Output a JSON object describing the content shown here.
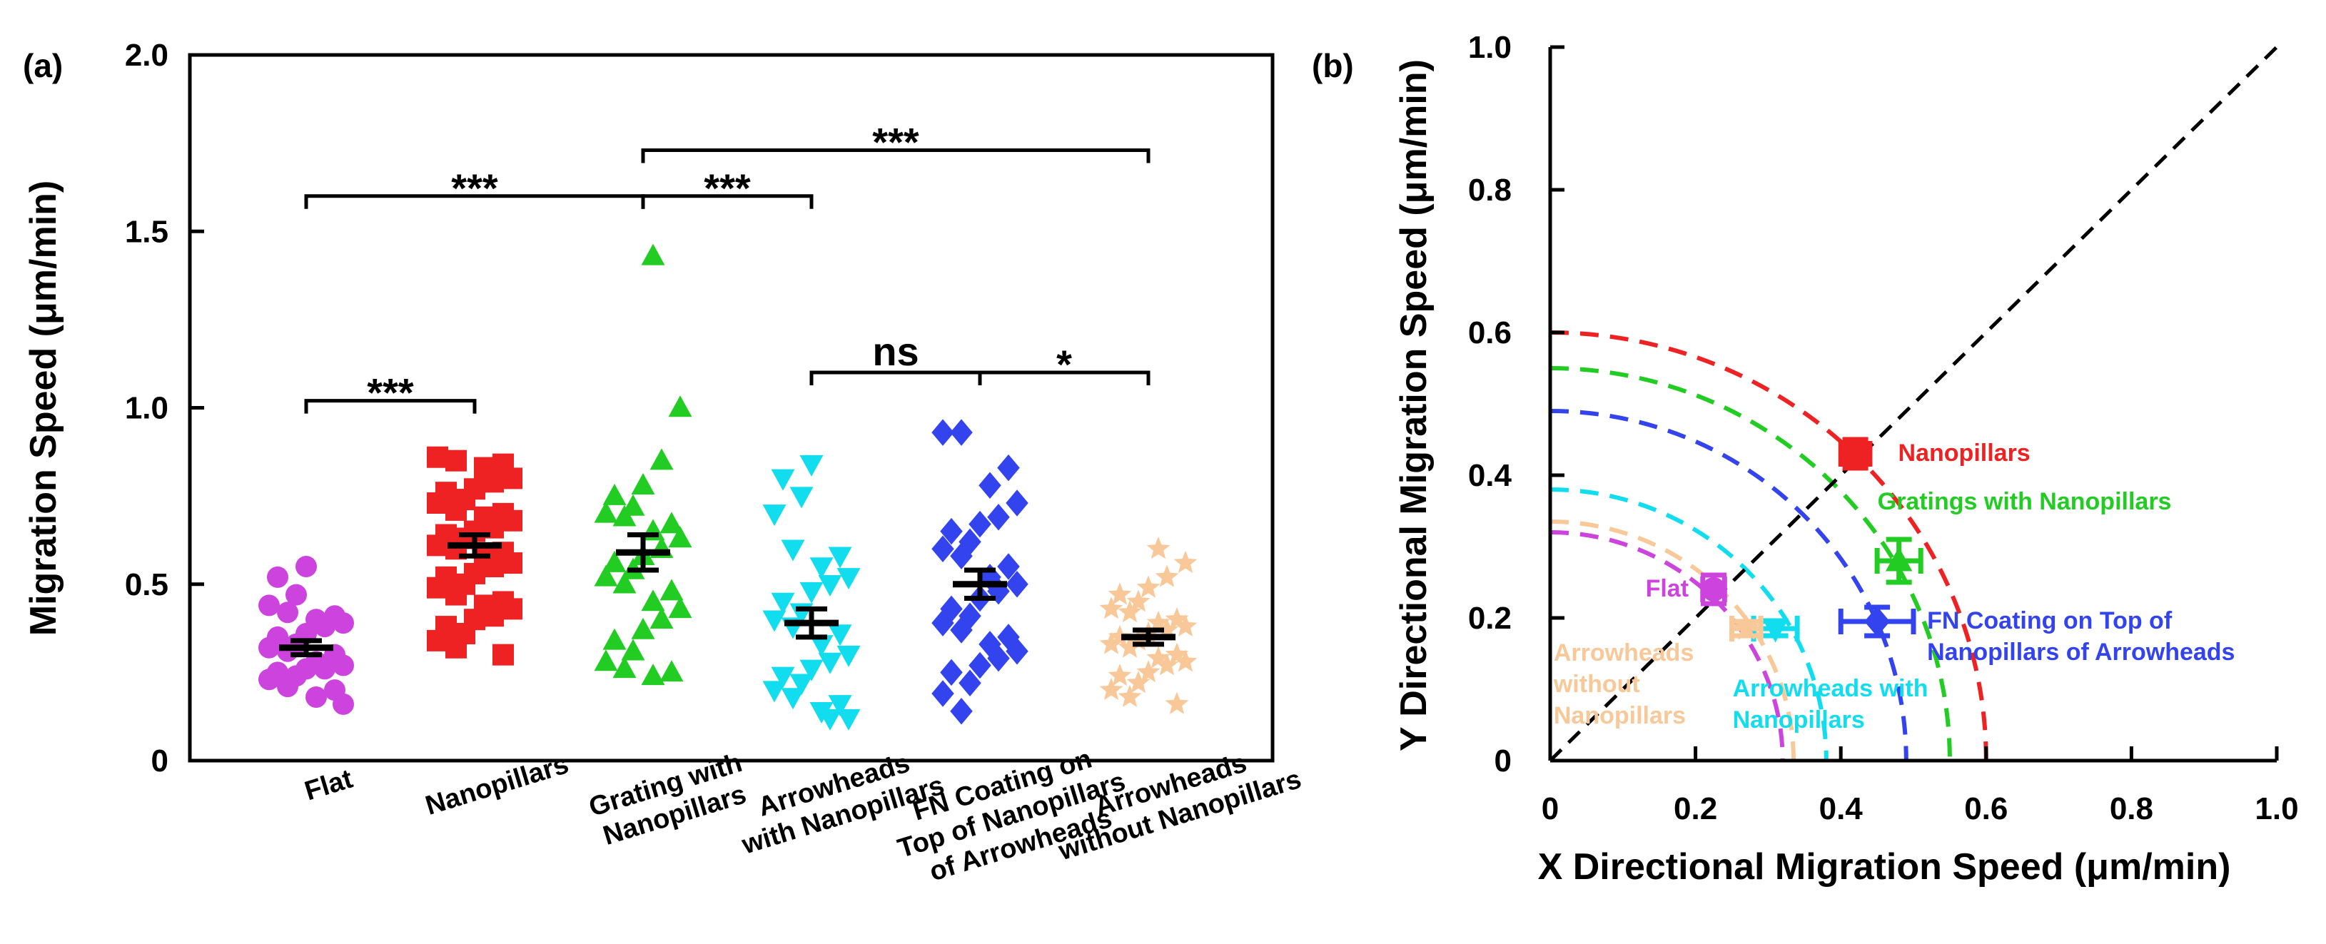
{
  "panel_a_label": "(a)",
  "panel_b_label": "(b)",
  "chart_data": [
    {
      "type": "scatter",
      "ylabel": "Migration Speed (μm/min)",
      "ylim": [
        0,
        2.0
      ],
      "yticks": [
        "0",
        "0.5",
        "1.0",
        "1.5",
        "2.0"
      ],
      "categories": [
        {
          "label_lines": [
            "Flat"
          ],
          "color": "#cc44dd",
          "marker": "circle",
          "mean": 0.32,
          "sem": 0.02,
          "values": [
            0.55,
            0.52,
            0.47,
            0.44,
            0.42,
            0.41,
            0.4,
            0.39,
            0.38,
            0.36,
            0.35,
            0.33,
            0.32,
            0.31,
            0.3,
            0.28,
            0.27,
            0.26,
            0.26,
            0.25,
            0.24,
            0.23,
            0.21,
            0.2,
            0.18,
            0.16
          ]
        },
        {
          "label_lines": [
            "Nanopillars"
          ],
          "color": "#ee2222",
          "marker": "square",
          "mean": 0.61,
          "sem": 0.03,
          "values": [
            0.86,
            0.85,
            0.84,
            0.83,
            0.8,
            0.79,
            0.77,
            0.76,
            0.74,
            0.73,
            0.71,
            0.7,
            0.69,
            0.68,
            0.66,
            0.65,
            0.64,
            0.63,
            0.61,
            0.6,
            0.59,
            0.58,
            0.56,
            0.55,
            0.53,
            0.52,
            0.5,
            0.49,
            0.47,
            0.45,
            0.44,
            0.43,
            0.41,
            0.4,
            0.38,
            0.36,
            0.34,
            0.32,
            0.3
          ]
        },
        {
          "label_lines": [
            "Grating with",
            "Nanopillars"
          ],
          "color": "#22cc22",
          "marker": "triangle",
          "mean": 0.59,
          "sem": 0.05,
          "values": [
            1.43,
            1.0,
            0.85,
            0.78,
            0.75,
            0.72,
            0.7,
            0.69,
            0.67,
            0.65,
            0.63,
            0.6,
            0.58,
            0.56,
            0.54,
            0.52,
            0.5,
            0.48,
            0.45,
            0.43,
            0.4,
            0.37,
            0.34,
            0.31,
            0.28,
            0.26,
            0.25,
            0.24
          ]
        },
        {
          "label_lines": [
            "Arrowheads",
            "with Nanopillars"
          ],
          "color": "#11ddee",
          "marker": "invtriangle",
          "mean": 0.39,
          "sem": 0.04,
          "values": [
            0.84,
            0.8,
            0.75,
            0.7,
            0.6,
            0.58,
            0.55,
            0.52,
            0.5,
            0.48,
            0.45,
            0.42,
            0.4,
            0.38,
            0.36,
            0.33,
            0.3,
            0.28,
            0.26,
            0.24,
            0.22,
            0.2,
            0.18,
            0.16,
            0.14,
            0.12,
            0.12
          ]
        },
        {
          "label_lines": [
            "FN Coating on",
            "Top of Nanopillars",
            "of Arrowheads"
          ],
          "color": "#3344ee",
          "marker": "diamond",
          "mean": 0.5,
          "sem": 0.04,
          "values": [
            0.93,
            0.93,
            0.83,
            0.78,
            0.73,
            0.69,
            0.67,
            0.65,
            0.62,
            0.6,
            0.58,
            0.55,
            0.52,
            0.5,
            0.48,
            0.46,
            0.43,
            0.41,
            0.39,
            0.37,
            0.35,
            0.33,
            0.31,
            0.29,
            0.27,
            0.25,
            0.22,
            0.19,
            0.14
          ]
        },
        {
          "label_lines": [
            "Arrowheads",
            "without Nanopillars"
          ],
          "color": "#f8c898",
          "marker": "star",
          "mean": 0.35,
          "sem": 0.02,
          "values": [
            0.6,
            0.56,
            0.52,
            0.49,
            0.47,
            0.45,
            0.43,
            0.42,
            0.4,
            0.39,
            0.38,
            0.37,
            0.36,
            0.35,
            0.34,
            0.33,
            0.32,
            0.3,
            0.29,
            0.28,
            0.27,
            0.25,
            0.24,
            0.22,
            0.2,
            0.18,
            0.16
          ]
        }
      ],
      "significance": [
        {
          "from": 0,
          "to": 1,
          "level": 1.02,
          "text": "***"
        },
        {
          "from": 0,
          "to": 2,
          "level": 1.6,
          "text": "***"
        },
        {
          "from": 2,
          "to": 3,
          "level": 1.6,
          "text": "***"
        },
        {
          "from": 2,
          "to": 5,
          "level": 1.73,
          "text": "***"
        },
        {
          "from": 3,
          "to": 4,
          "level": 1.1,
          "text": "ns"
        },
        {
          "from": 4,
          "to": 5,
          "level": 1.1,
          "text": "*"
        }
      ]
    },
    {
      "type": "scatter",
      "xlabel": "X Directional Migration Speed (μm/min)",
      "ylabel": "Y Directional Migration Speed (μm/min)",
      "xlim": [
        0,
        1.0
      ],
      "ylim": [
        0,
        1.0
      ],
      "xticks": [
        "0",
        "0.2",
        "0.4",
        "0.6",
        "0.8",
        "1.0"
      ],
      "yticks": [
        "0",
        "0.2",
        "0.4",
        "0.6",
        "0.8",
        "1.0"
      ],
      "diagonal": true,
      "points": [
        {
          "label_lines": [
            "Nanopillars"
          ],
          "x": 0.42,
          "y": 0.43,
          "xerr": 0.02,
          "yerr": 0.02,
          "color": "#ee2222",
          "marker": "square",
          "arc": 0.6
        },
        {
          "label_lines": [
            "Gratings with Nanopillars"
          ],
          "x": 0.48,
          "y": 0.28,
          "xerr": 0.03,
          "yerr": 0.03,
          "color": "#22cc22",
          "marker": "triangle",
          "arc": 0.55
        },
        {
          "label_lines": [
            "FN Coating on Top of",
            "Nanopillars of Arrowheads"
          ],
          "x": 0.45,
          "y": 0.195,
          "xerr": 0.05,
          "yerr": 0.02,
          "color": "#3344ee",
          "marker": "diamond",
          "arc": 0.49
        },
        {
          "label_lines": [
            "Arrowheads with",
            "Nanopillars"
          ],
          "x": 0.31,
          "y": 0.185,
          "xerr": 0.03,
          "yerr": 0.01,
          "color": "#11ddee",
          "marker": "invtriangle",
          "arc": 0.38
        },
        {
          "label_lines": [
            "Arrowheads",
            "without",
            "Nanopillars"
          ],
          "x": 0.27,
          "y": 0.185,
          "xerr": 0.02,
          "yerr": 0.01,
          "color": "#f8c898",
          "marker": "star",
          "arc": 0.335
        },
        {
          "label_lines": [
            "Flat"
          ],
          "x": 0.225,
          "y": 0.24,
          "xerr": 0.015,
          "yerr": 0.02,
          "color": "#cc44dd",
          "marker": "circle",
          "arc": 0.32
        }
      ]
    }
  ]
}
